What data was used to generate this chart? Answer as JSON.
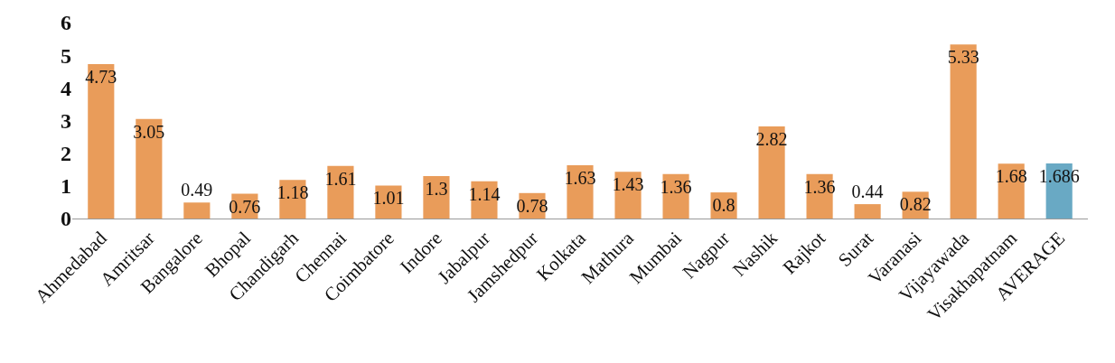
{
  "chart_data": {
    "type": "bar",
    "categories": [
      "Ahmedabad",
      "Amritsar",
      "Bangalore",
      "Bhopal",
      "Chandigarh",
      "Chennai",
      "Coimbatore",
      "Indore",
      "Jabalpur",
      "Jamshedpur",
      "Kolkata",
      "Mathura",
      "Mumbai",
      "Nagpur",
      "Nashik",
      "Rajkot",
      "Surat",
      "Varanasi",
      "Vijayawada",
      "Visakhapatnam",
      "AVERAGE"
    ],
    "values": [
      4.73,
      3.05,
      0.49,
      0.76,
      1.18,
      1.61,
      1.01,
      1.3,
      1.14,
      0.78,
      1.63,
      1.43,
      1.36,
      0.8,
      2.82,
      1.36,
      0.44,
      0.82,
      5.33,
      1.68,
      1.686
    ],
    "colors": [
      "#e99c5a",
      "#e99c5a",
      "#e99c5a",
      "#e99c5a",
      "#e99c5a",
      "#e99c5a",
      "#e99c5a",
      "#e99c5a",
      "#e99c5a",
      "#e99c5a",
      "#e99c5a",
      "#e99c5a",
      "#e99c5a",
      "#e99c5a",
      "#e99c5a",
      "#e99c5a",
      "#e99c5a",
      "#e99c5a",
      "#e99c5a",
      "#e99c5a",
      "#69a9c4"
    ],
    "ylim": [
      0,
      6
    ],
    "yticks": [
      0,
      1,
      2,
      3,
      4,
      5,
      6
    ],
    "data_labels": true,
    "legend": false
  }
}
